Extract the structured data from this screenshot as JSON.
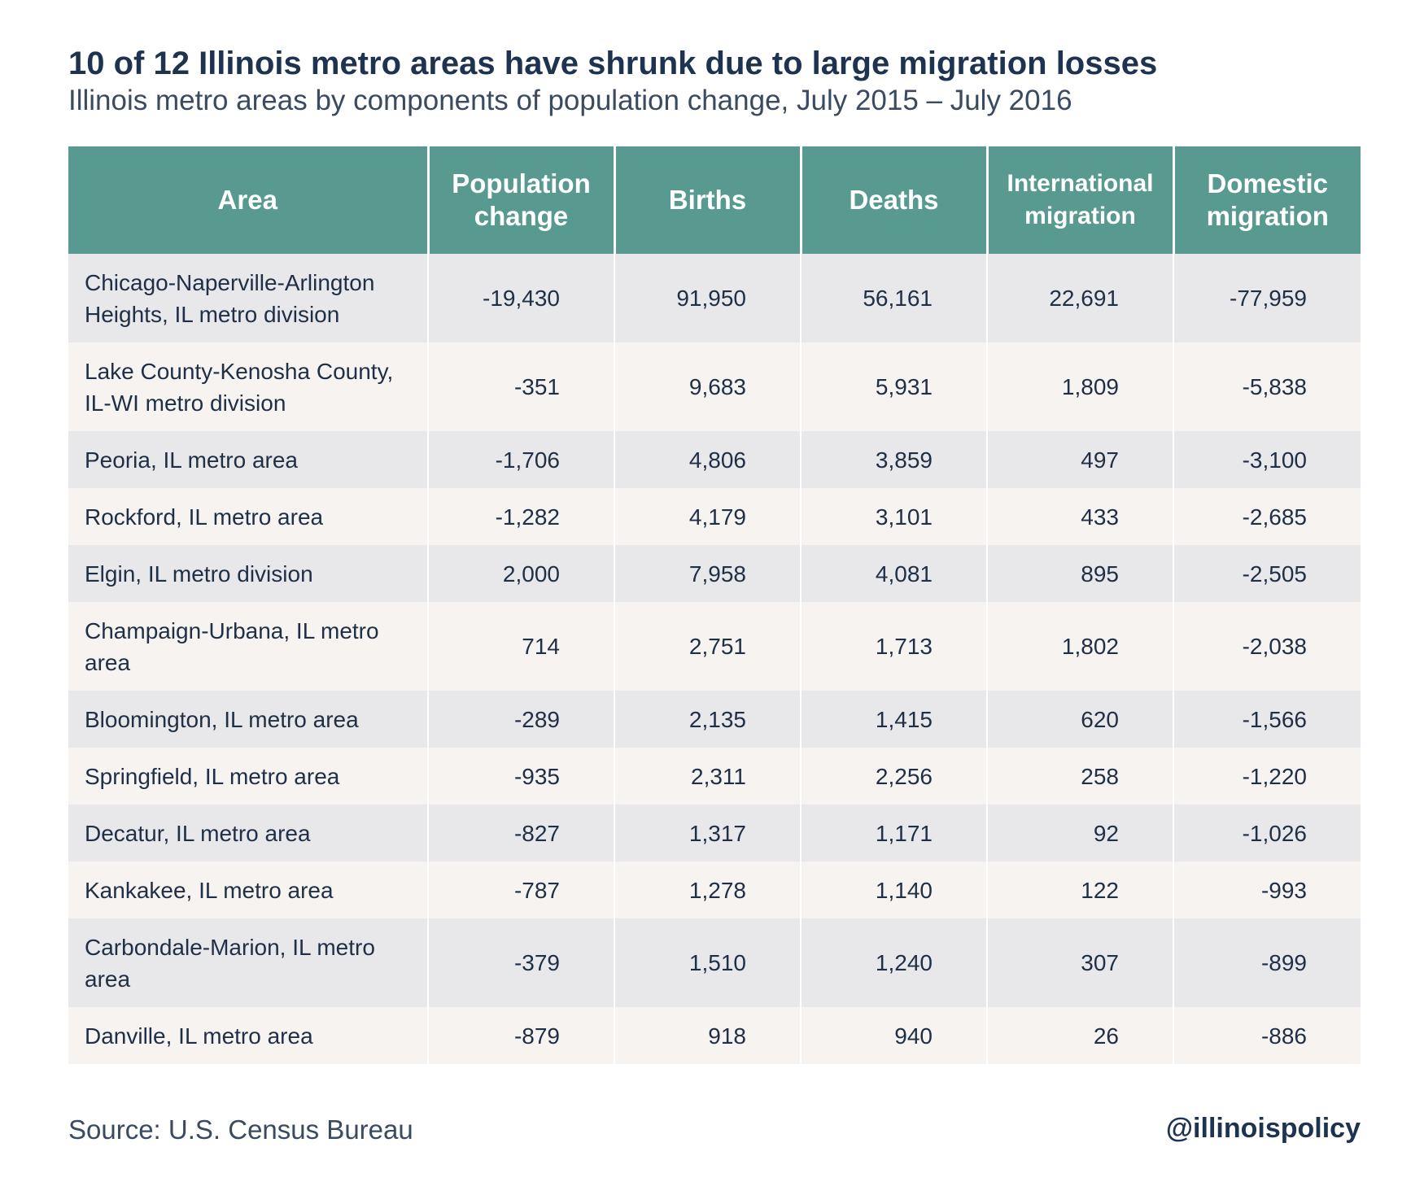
{
  "title": "10 of 12 Illinois metro areas have shrunk due to large migration losses",
  "subtitle": "Illinois metro areas by components of population change, July 2015 – July 2016",
  "source": "Source: U.S. Census Bureau",
  "handle": "@illinoispolicy",
  "colors": {
    "header_bg": "#589a8f",
    "row_odd": "#e8e7e9",
    "row_even": "#f6f3f1",
    "title": "#1d3350"
  },
  "chart_data": {
    "type": "table",
    "title": "10 of 12 Illinois metro areas have shrunk due to large migration losses",
    "subtitle": "Illinois metro areas by components of population change, July 2015 – July 2016",
    "columns": [
      "Area",
      "Population change",
      "Births",
      "Deaths",
      "International migration",
      "Domestic migration"
    ],
    "rows": [
      [
        "Chicago-Naperville-Arlington Heights, IL metro division",
        "-19,430",
        "91,950",
        "56,161",
        "22,691",
        "-77,959"
      ],
      [
        "Lake County-Kenosha County, IL-WI metro division",
        "-351",
        "9,683",
        "5,931",
        "1,809",
        "-5,838"
      ],
      [
        "Peoria, IL metro area",
        "-1,706",
        "4,806",
        "3,859",
        "497",
        "-3,100"
      ],
      [
        "Rockford, IL metro area",
        "-1,282",
        "4,179",
        "3,101",
        "433",
        "-2,685"
      ],
      [
        "Elgin, IL metro division",
        "2,000",
        "7,958",
        "4,081",
        "895",
        "-2,505"
      ],
      [
        "Champaign-Urbana, IL metro area",
        "714",
        "2,751",
        "1,713",
        "1,802",
        "-2,038"
      ],
      [
        "Bloomington, IL metro area",
        "-289",
        "2,135",
        "1,415",
        "620",
        "-1,566"
      ],
      [
        "Springfield, IL metro area",
        "-935",
        "2,311",
        "2,256",
        "258",
        "-1,220"
      ],
      [
        "Decatur, IL metro area",
        "-827",
        "1,317",
        "1,171",
        "92",
        "-1,026"
      ],
      [
        "Kankakee, IL metro area",
        "-787",
        "1,278",
        "1,140",
        "122",
        "-993"
      ],
      [
        "Carbondale-Marion, IL metro area",
        "-379",
        "1,510",
        "1,240",
        "307",
        "-899"
      ],
      [
        "Danville, IL metro area",
        "-879",
        "918",
        "940",
        "26",
        "-886"
      ]
    ]
  }
}
